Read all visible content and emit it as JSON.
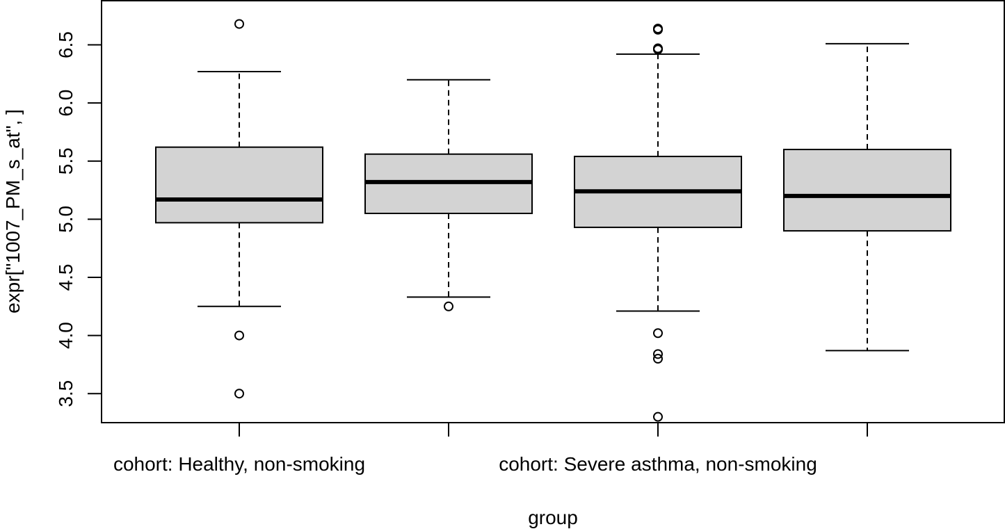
{
  "chart_data": {
    "type": "boxplot",
    "xlabel": "group",
    "ylabel": "expr[\"1007_PM_s_at\", ]",
    "ylim": [
      3.25,
      6.88
    ],
    "yticks": [
      "3.5",
      "4.0",
      "4.5",
      "5.0",
      "5.5",
      "6.0",
      "6.5"
    ],
    "grid": false,
    "box_fill": "#d3d3d3",
    "categories": [
      "cohort: Healthy, non-smoking",
      "",
      "cohort: Severe asthma, non-smoking",
      ""
    ],
    "boxes": [
      {
        "whisker_low": 4.25,
        "q1": 4.97,
        "median": 5.17,
        "q3": 5.62,
        "whisker_high": 6.27,
        "outliers": [
          6.68,
          4.0,
          3.5
        ]
      },
      {
        "whisker_low": 4.33,
        "q1": 5.05,
        "median": 5.32,
        "q3": 5.56,
        "whisker_high": 6.2,
        "outliers": [
          4.25
        ]
      },
      {
        "whisker_low": 4.21,
        "q1": 4.93,
        "median": 5.24,
        "q3": 5.54,
        "whisker_high": 6.42,
        "outliers": [
          6.64,
          6.63,
          6.47,
          6.46,
          4.02,
          3.84,
          3.8,
          3.3
        ]
      },
      {
        "whisker_low": 3.87,
        "q1": 4.9,
        "median": 5.2,
        "q3": 5.6,
        "whisker_high": 6.51,
        "outliers": []
      }
    ]
  }
}
